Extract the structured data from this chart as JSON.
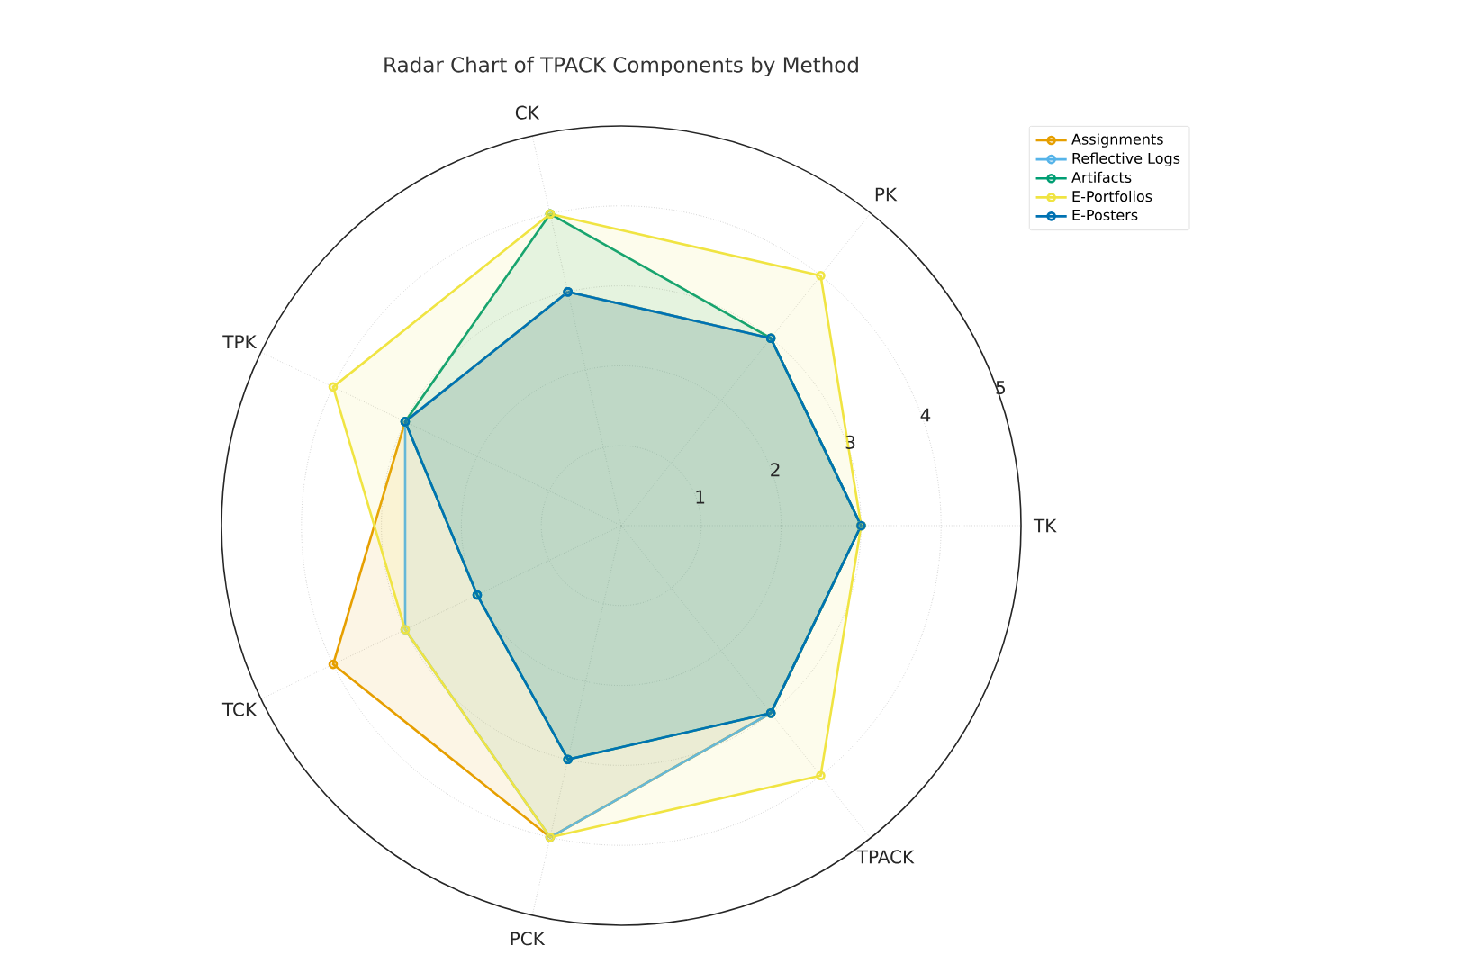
{
  "chart_data": {
    "type": "radar",
    "title": "Radar Chart of TPACK Components by Method",
    "categories": [
      "CK",
      "PK",
      "TK",
      "TPACK",
      "PCK",
      "TCK",
      "TPK"
    ],
    "series": [
      {
        "name": "Assignments",
        "color": "#e69f00",
        "values": [
          3,
          3,
          3,
          3,
          4,
          4,
          3
        ]
      },
      {
        "name": "Reflective Logs",
        "color": "#56b4e9",
        "values": [
          3,
          3,
          3,
          3,
          4,
          3,
          3
        ]
      },
      {
        "name": "Artifacts",
        "color": "#009e73",
        "values": [
          4,
          3,
          3,
          3,
          3,
          2,
          3
        ]
      },
      {
        "name": "E-Portfolios",
        "color": "#f0e442",
        "values": [
          4,
          4,
          3,
          4,
          4,
          3,
          4
        ]
      },
      {
        "name": "E-Posters",
        "color": "#0072b2",
        "values": [
          3,
          3,
          3,
          3,
          3,
          2,
          3
        ]
      }
    ],
    "ylim": [
      0,
      5
    ],
    "yticks": [
      1,
      2,
      3,
      4,
      5
    ],
    "grid": true,
    "legend": "top right",
    "marker": "circle"
  }
}
